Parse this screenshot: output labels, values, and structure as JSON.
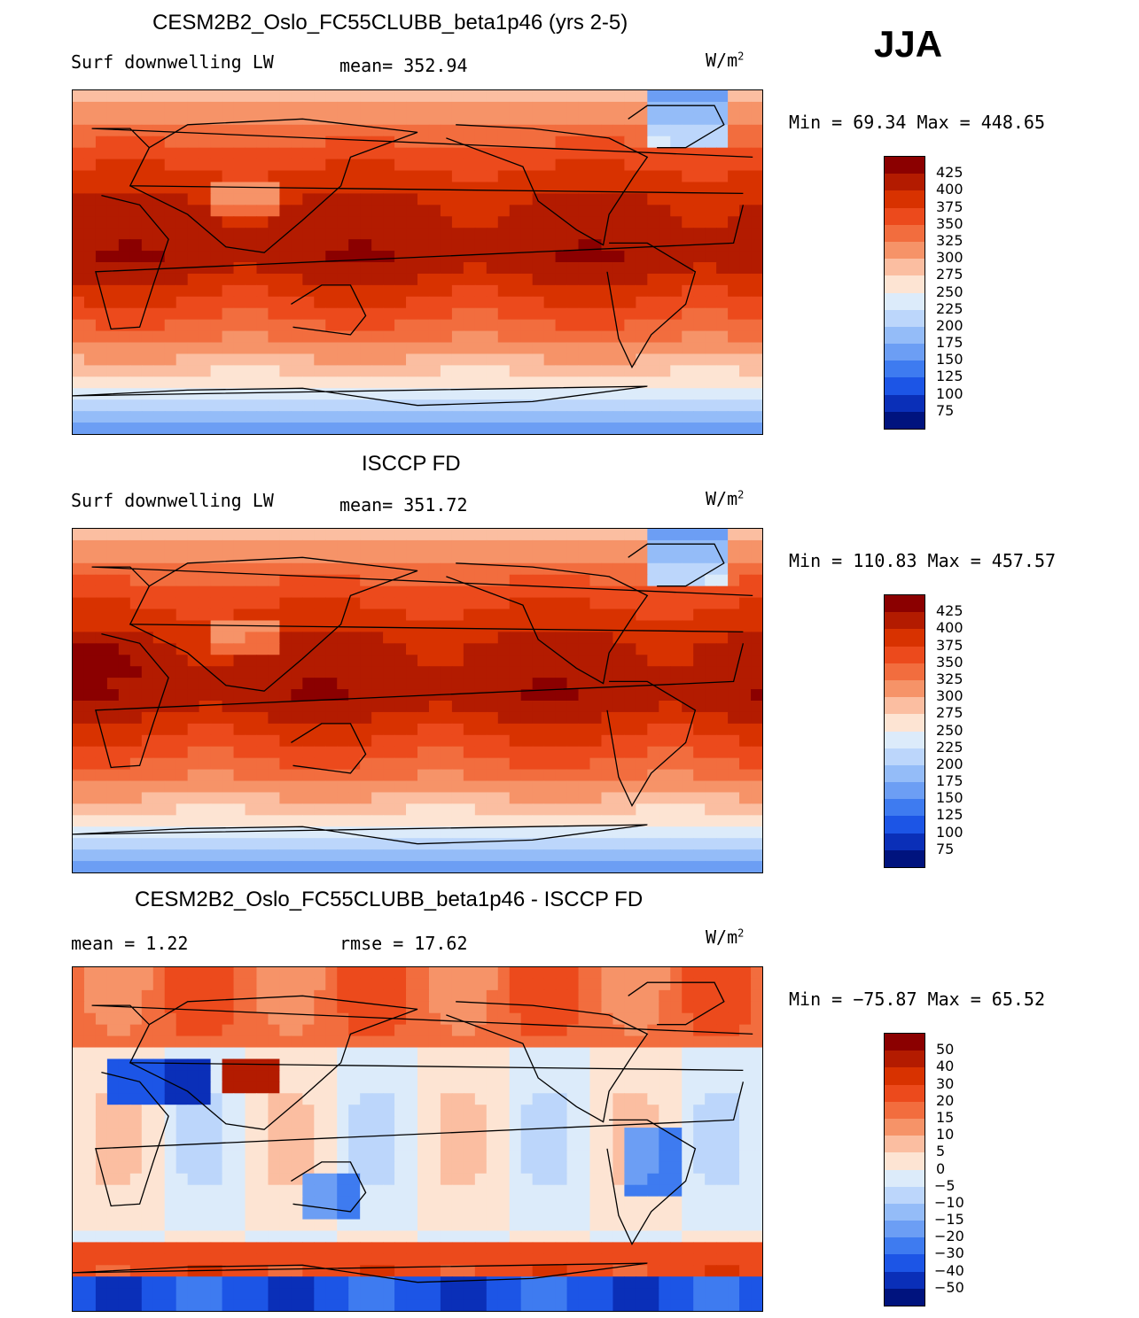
{
  "season": "JJA",
  "units_base": "W/m",
  "units_exp": "2",
  "panels": [
    {
      "title": "CESM2B2_Oslo_FC55CLUBB_beta1p46 (yrs 2-5)",
      "left_label": "Surf downwelling LW",
      "mid_label": "mean= 352.94",
      "minmax": "Min =  69.34 Max = 448.65"
    },
    {
      "title": "ISCCP FD",
      "left_label": "Surf downwelling LW",
      "mid_label": "mean= 351.72",
      "minmax": "Min = 110.83 Max = 457.57"
    },
    {
      "title": "CESM2B2_Oslo_FC55CLUBB_beta1p46 - ISCCP FD",
      "left_label": "mean =    1.22",
      "mid_label": "rmse =   17.62",
      "minmax": "Min = −75.87 Max =   65.52"
    }
  ],
  "chart_data": [
    {
      "type": "heatmap",
      "title": "CESM2B2_Oslo_FC55CLUBB_beta1p46 (yrs 2-5)",
      "variable": "Surf downwelling LW",
      "mean": 352.94,
      "min": 69.34,
      "max": 448.65,
      "colorbar_levels": [
        "425",
        "400",
        "375",
        "350",
        "325",
        "300",
        "275",
        "250",
        "225",
        "200",
        "175",
        "150",
        "125",
        "100",
        "75"
      ],
      "colors": [
        "#8b0000",
        "#b31b00",
        "#d83200",
        "#ec4a1c",
        "#f26d3e",
        "#f69368",
        "#fbbea1",
        "#fde4d3",
        "#dcebfa",
        "#bcd6fb",
        "#94bcf8",
        "#6c9ef4",
        "#3e7bf0",
        "#1c55e6",
        "#0a2fb8",
        "#00137e"
      ]
    },
    {
      "type": "heatmap",
      "title": "ISCCP FD",
      "variable": "Surf downwelling LW",
      "mean": 351.72,
      "min": 110.83,
      "max": 457.57,
      "colorbar_levels": [
        "425",
        "400",
        "375",
        "350",
        "325",
        "300",
        "275",
        "250",
        "225",
        "200",
        "175",
        "150",
        "125",
        "100",
        "75"
      ],
      "colors": [
        "#8b0000",
        "#b31b00",
        "#d83200",
        "#ec4a1c",
        "#f26d3e",
        "#f69368",
        "#fbbea1",
        "#fde4d3",
        "#dcebfa",
        "#bcd6fb",
        "#94bcf8",
        "#6c9ef4",
        "#3e7bf0",
        "#1c55e6",
        "#0a2fb8",
        "#00137e"
      ]
    },
    {
      "type": "heatmap",
      "title": "CESM2B2_Oslo_FC55CLUBB_beta1p46 - ISCCP FD",
      "mean": 1.22,
      "rmse": 17.62,
      "min": -75.87,
      "max": 65.52,
      "colorbar_levels": [
        "50",
        "40",
        "30",
        "20",
        "15",
        "10",
        "5",
        "0",
        "−5",
        "−10",
        "−15",
        "−20",
        "−30",
        "−40",
        "−50"
      ],
      "colors": [
        "#8b0000",
        "#b31b00",
        "#d83200",
        "#ec4a1c",
        "#f26d3e",
        "#f69368",
        "#fbbea1",
        "#fde4d3",
        "#dcebfa",
        "#bcd6fb",
        "#94bcf8",
        "#6c9ef4",
        "#3e7bf0",
        "#1c55e6",
        "#0a2fb8",
        "#00137e"
      ]
    }
  ]
}
